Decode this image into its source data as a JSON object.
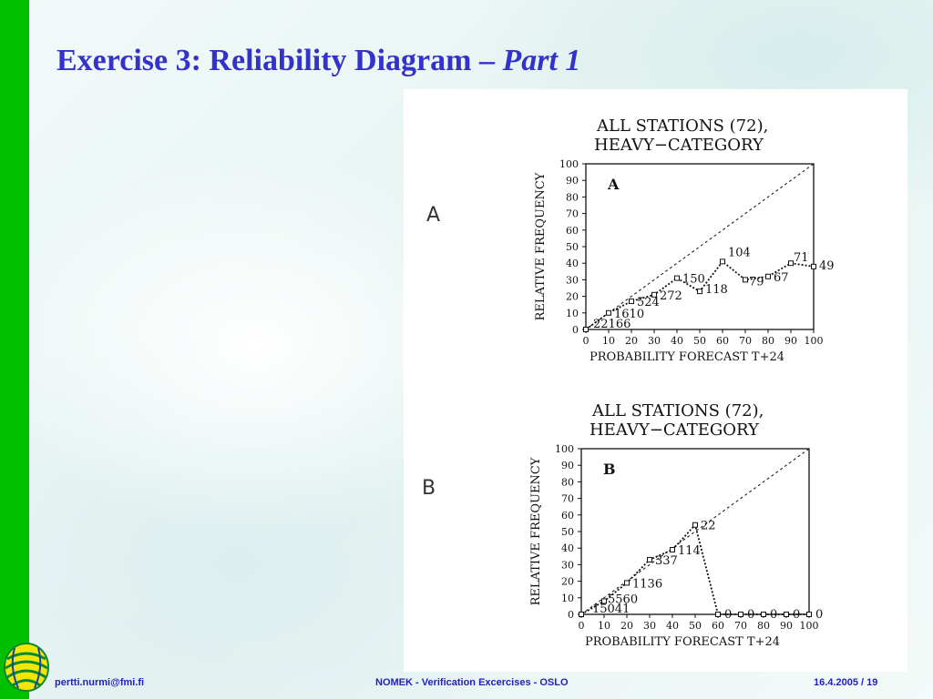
{
  "slide": {
    "title_main": "Exercise 3: Reliability Diagram – ",
    "title_italic": "Part 1",
    "side_labels": [
      "A",
      "B"
    ],
    "footer": {
      "email": "pertti.nurmi@fmi.fi",
      "center": "NOMEK - Verification Excercises - OSLO",
      "date_page": "16.4.2005  / 19"
    },
    "colors": {
      "accent": "#3333cc",
      "sidebar": "#00c000",
      "footer_text": "#2222bb"
    }
  },
  "chart_data": [
    {
      "type": "line",
      "panel_label": "A",
      "title": [
        "ALL STATIONS (72),",
        "HEAVY−CATEGORY"
      ],
      "xlabel": "PROBABILITY  FORECAST  T+24",
      "ylabel": "RELATIVE  FREQUENCY",
      "xlim": [
        0,
        100
      ],
      "ylim": [
        0,
        100
      ],
      "xticks": [
        0,
        10,
        20,
        30,
        40,
        50,
        60,
        70,
        80,
        90,
        100
      ],
      "yticks": [
        0,
        10,
        20,
        30,
        40,
        50,
        60,
        70,
        80,
        90,
        100
      ],
      "diagonal": true,
      "points": [
        {
          "x": 0,
          "y": 0,
          "n": "22166"
        },
        {
          "x": 10,
          "y": 10,
          "n": "1610"
        },
        {
          "x": 20,
          "y": 17,
          "n": "524"
        },
        {
          "x": 30,
          "y": 21,
          "n": "272"
        },
        {
          "x": 40,
          "y": 31,
          "n": "150"
        },
        {
          "x": 50,
          "y": 23,
          "n": "118"
        },
        {
          "x": 60,
          "y": 41,
          "n": "104"
        },
        {
          "x": 70,
          "y": 30,
          "n": "79"
        },
        {
          "x": 80,
          "y": 32,
          "n": "67"
        },
        {
          "x": 90,
          "y": 40,
          "n": "71"
        },
        {
          "x": 100,
          "y": 38,
          "n": "49"
        }
      ]
    },
    {
      "type": "line",
      "panel_label": "B",
      "title": [
        "ALL STATIONS (72),",
        "HEAVY−CATEGORY"
      ],
      "xlabel": "PROBABILITY  FORECAST  T+24",
      "ylabel": "RELATIVE  FREQUENCY",
      "xlim": [
        0,
        100
      ],
      "ylim": [
        0,
        100
      ],
      "xticks": [
        0,
        10,
        20,
        30,
        40,
        50,
        60,
        70,
        80,
        90,
        100
      ],
      "yticks": [
        0,
        10,
        20,
        30,
        40,
        50,
        60,
        70,
        80,
        90,
        100
      ],
      "diagonal": true,
      "points": [
        {
          "x": 0,
          "y": 0,
          "n": "15041"
        },
        {
          "x": 10,
          "y": 8,
          "n": "5560"
        },
        {
          "x": 20,
          "y": 19,
          "n": "1136"
        },
        {
          "x": 30,
          "y": 33,
          "n": "337"
        },
        {
          "x": 40,
          "y": 39,
          "n": "114"
        },
        {
          "x": 50,
          "y": 54,
          "n": "22"
        },
        {
          "x": 60,
          "y": 0,
          "n": "0"
        },
        {
          "x": 70,
          "y": 0,
          "n": "0"
        },
        {
          "x": 80,
          "y": 0,
          "n": "0"
        },
        {
          "x": 90,
          "y": 0,
          "n": "0"
        },
        {
          "x": 100,
          "y": 0,
          "n": "0"
        }
      ]
    }
  ]
}
